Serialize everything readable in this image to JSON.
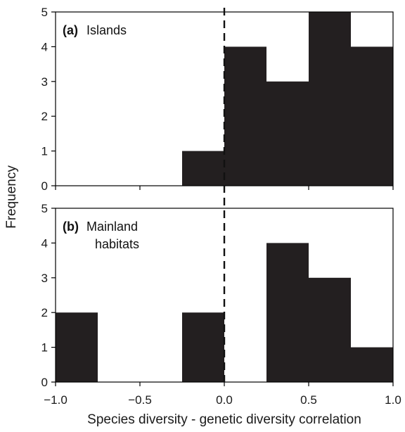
{
  "chart_data": {
    "type": "bar",
    "xlabel": "Species diversity - genetic diversity correlation",
    "ylabel": "Frequency",
    "xlim": [
      -1.0,
      1.0
    ],
    "x_ticks": [
      -1.0,
      -0.5,
      0.0,
      0.5,
      1.0
    ],
    "x_tick_labels": [
      "−1.0",
      "−0.5",
      "0.0",
      "0.5",
      "1.0"
    ],
    "ylim": [
      0,
      5
    ],
    "y_ticks": [
      0,
      1,
      2,
      3,
      4,
      5
    ],
    "bin_edges": [
      -1.0,
      -0.75,
      -0.5,
      -0.25,
      0.0,
      0.25,
      0.5,
      0.75,
      1.0
    ],
    "reference_line": {
      "x": 0.0,
      "style": "dashed"
    },
    "bar_color": "#231f20",
    "panels": [
      {
        "tag": "(a)",
        "name_lines": [
          "Islands"
        ],
        "values": [
          0,
          0,
          0,
          1,
          4,
          3,
          5,
          4
        ]
      },
      {
        "tag": "(b)",
        "name_lines": [
          "Mainland",
          "habitats"
        ],
        "values": [
          2,
          0,
          0,
          2,
          0,
          4,
          3,
          1
        ]
      }
    ]
  }
}
